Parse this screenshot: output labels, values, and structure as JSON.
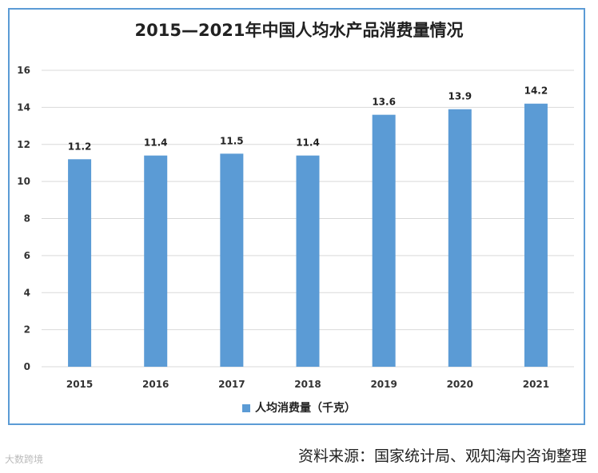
{
  "chart_data": {
    "type": "bar",
    "title": "2015—2021年中国人均水产品消费量情况",
    "categories": [
      "2015",
      "2016",
      "2017",
      "2018",
      "2019",
      "2020",
      "2021"
    ],
    "series": [
      {
        "name": "人均消费量（千克）",
        "values": [
          11.2,
          11.4,
          11.5,
          11.4,
          13.6,
          13.9,
          14.2
        ]
      }
    ],
    "data_labels": [
      "11.2",
      "11.4",
      "11.5",
      "11.4",
      "13.6",
      "13.9",
      "14.2"
    ],
    "yticks": [
      "0",
      "2",
      "4",
      "6",
      "8",
      "10",
      "12",
      "14",
      "16"
    ],
    "ylim": [
      0,
      16
    ],
    "grid": true,
    "legend_position": "bottom",
    "xlabel": "",
    "ylabel": ""
  },
  "colors": {
    "bar": "#5b9bd5",
    "grid": "#d9d9d9",
    "frame": "#5b9bd5"
  },
  "source": "资料来源：国家统计局、观知海内咨询整理",
  "watermark": "大数跨境"
}
